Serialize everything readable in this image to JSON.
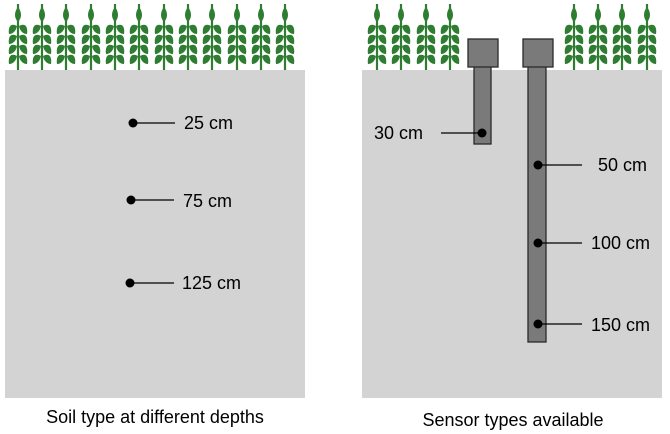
{
  "colors": {
    "soil": "#d3d3d3",
    "sensor": "#7a7a7a",
    "sensor_outline": "#2a2a2a",
    "crop": "#2e7d32",
    "marker": "#000000"
  },
  "icons": {
    "crop": "wheat-plant-icon",
    "probe": "sensor-probe-icon"
  },
  "left_panel": {
    "caption": "Soil type at different depths",
    "depths": [
      {
        "label": "25 cm"
      },
      {
        "label": "75 cm"
      },
      {
        "label": "125 cm"
      }
    ]
  },
  "right_panel": {
    "caption": "Sensor types available",
    "short_sensor": {
      "label": "30 cm"
    },
    "long_sensor": {
      "labels": [
        {
          "label": "50 cm"
        },
        {
          "label": "100 cm"
        },
        {
          "label": "150 cm"
        }
      ]
    }
  }
}
